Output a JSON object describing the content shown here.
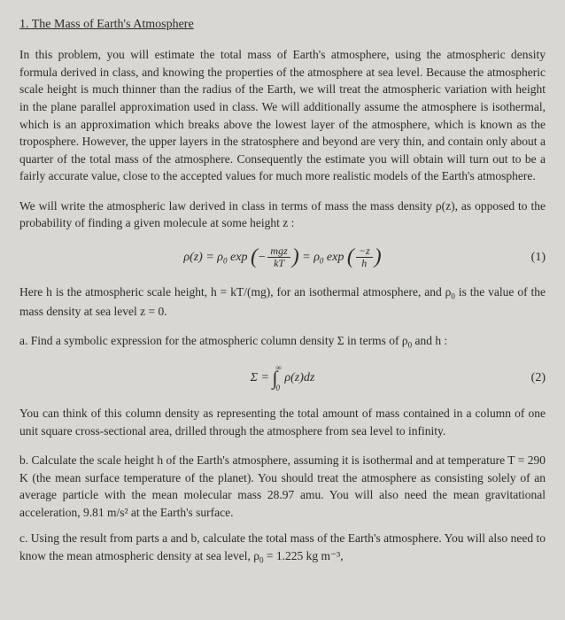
{
  "title": "1. The Mass of Earth's Atmosphere",
  "p1": "In this problem, you will estimate the total mass of Earth's atmosphere, using the atmospheric density formula derived in class, and knowing the properties of the atmosphere at sea level. Because the atmospheric scale height is much thinner than the radius of the Earth, we will treat the atmospheric variation with height in the plane parallel approximation used in class. We will additionally assume the atmosphere is isothermal, which is an approximation which breaks above the lowest layer of the atmosphere, which is known as the troposphere. However, the upper layers in the stratosphere and beyond are very thin, and contain only about a quarter of the total mass of the atmosphere. Consequently the estimate you will obtain will turn out to be a fairly accurate value, close to the accepted values for much more realistic models of the Earth's atmosphere.",
  "p2": "We will write the atmospheric law derived in class in terms of mass the mass density ρ(z), as opposed to the probability of finding a given molecule at some height z :",
  "eq1": {
    "lhs": "ρ(z) = ρ",
    "sub0a": "0",
    "exp1": " exp ",
    "frac1_num": "mgz",
    "frac1_den": "kT",
    "mid": " = ρ",
    "sub0b": "0",
    "exp2": " exp ",
    "frac2_num": "−z",
    "frac2_den": "h",
    "number": "(1)"
  },
  "p3_a": "Here h is the atmospheric scale height, h = kT/(mg), for an isothermal atmosphere, and ρ",
  "p3_sub": "0",
  "p3_b": " is the value of the mass density at sea level z = 0.",
  "item_a_a": "a. Find a symbolic expression for the atmospheric column density Σ in terms of ρ",
  "item_a_sub": "0",
  "item_a_b": " and h :",
  "eq2": {
    "lhs": "Σ = ",
    "upper": "∞",
    "lower": "0",
    "integrand": " ρ(z)dz",
    "number": "(2)"
  },
  "p4": "You can think of this column density as representing the total amount of mass contained in a column of one unit square cross-sectional area, drilled through the atmosphere from sea level to infinity.",
  "item_b": "b. Calculate the scale height h of the Earth's atmosphere, assuming it is isothermal and at temperature T = 290 K (the mean surface temperature of the planet). You should treat the atmosphere as consisting solely of an average particle with the mean molecular mass 28.97 amu. You will also need the mean gravitational acceleration, 9.81 m/s² at the Earth's surface.",
  "item_c_a": "c. Using the result from parts a and b, calculate the total mass of the Earth's atmosphere. You will also need to know the mean atmospheric density at sea level, ρ",
  "item_c_sub": "0",
  "item_c_b": " = 1.225 kg m⁻³,"
}
